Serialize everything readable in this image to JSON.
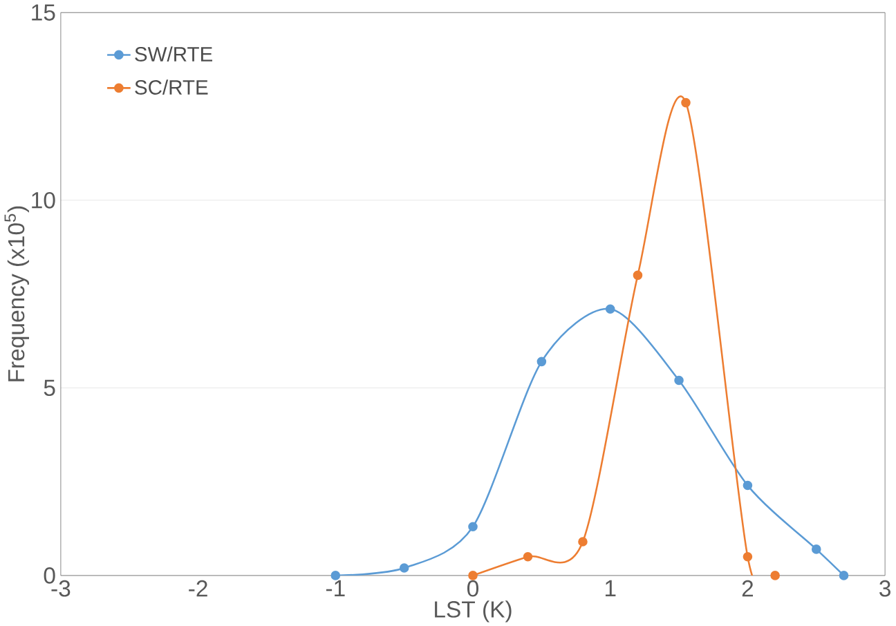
{
  "chart_data": {
    "type": "line",
    "xlabel": "LST (K)",
    "ylabel": "Frequency (x10$^{5}$)",
    "xlim": [
      -3,
      3
    ],
    "ylim": [
      0,
      15
    ],
    "xticks": [
      -3,
      -2,
      -1,
      0,
      1,
      2,
      3
    ],
    "yticks": [
      0,
      5,
      10,
      15
    ],
    "grid": "y",
    "legend": "top left",
    "marker": "circle",
    "line_style": "solid",
    "series": [
      {
        "name": "SW/RTE",
        "color": "#5b9bd5",
        "x": [
          -1,
          -0.5,
          0,
          0.5,
          1,
          1.5,
          2,
          2.5,
          2.7
        ],
        "values": [
          0,
          0.2,
          1.3,
          5.7,
          7.1,
          5.2,
          2.4,
          0.7,
          0
        ]
      },
      {
        "name": "SC/RTE",
        "color": "#ed7d31",
        "x": [
          0,
          0.4,
          0.8,
          1.2,
          1.55,
          2,
          2.2
        ],
        "values": [
          0,
          0.5,
          0.9,
          8.0,
          12.6,
          0.5,
          0
        ]
      }
    ]
  }
}
